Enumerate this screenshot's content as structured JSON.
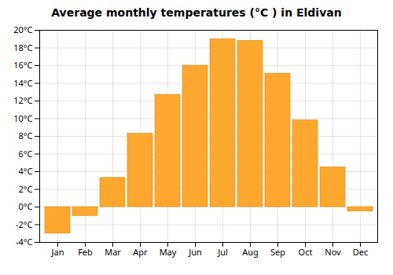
{
  "chart_data": {
    "type": "bar",
    "title": "Average monthly temperatures (°C ) in Eldivan",
    "categories": [
      "Jan",
      "Feb",
      "Mar",
      "Apr",
      "May",
      "Jun",
      "Jul",
      "Aug",
      "Sep",
      "Oct",
      "Nov",
      "Dec"
    ],
    "values": [
      -3.0,
      -1.0,
      3.3,
      8.3,
      12.7,
      16.0,
      19.0,
      18.8,
      15.1,
      9.8,
      4.5,
      -0.5
    ],
    "color": "#FFA830",
    "ylim": [
      -4,
      20
    ],
    "yticks": [
      {
        "value": -4,
        "label": "-4°C"
      },
      {
        "value": -2,
        "label": "-2°C"
      },
      {
        "value": 0,
        "label": "0°C"
      },
      {
        "value": 2,
        "label": "2°C"
      },
      {
        "value": 4,
        "label": "4°C"
      },
      {
        "value": 6,
        "label": "6°C"
      },
      {
        "value": 8,
        "label": "8°C"
      },
      {
        "value": 10,
        "label": "10°C"
      },
      {
        "value": 12,
        "label": "12°C"
      },
      {
        "value": 14,
        "label": "14°C"
      },
      {
        "value": 16,
        "label": "16°C"
      },
      {
        "value": 18,
        "label": "18°C"
      },
      {
        "value": 20,
        "label": "20°C"
      }
    ],
    "grid": true
  }
}
